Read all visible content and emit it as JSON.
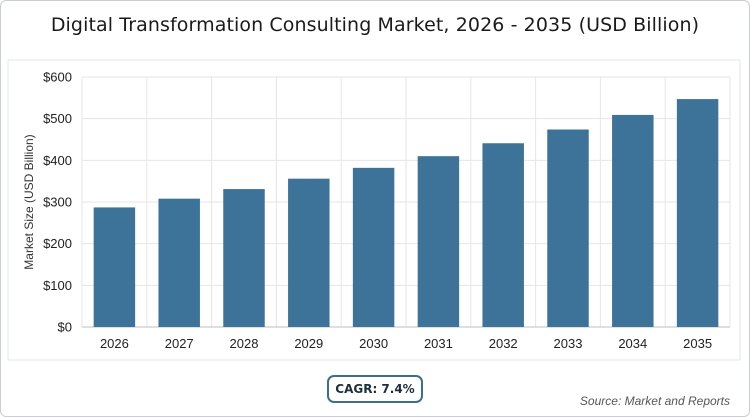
{
  "title": "Digital Transformation Consulting Market, 2026 - 2035 (USD Billion)",
  "cagr_badge": "CAGR: 7.4%",
  "source": "Source: Market and Reports",
  "colors": {
    "bar": "#3d7399",
    "grid": "#e6e6e6",
    "axis": "#bfbfbf"
  },
  "chart_data": {
    "type": "bar",
    "title": "Digital Transformation Consulting Market, 2026 - 2035 (USD Billion)",
    "xlabel": "",
    "ylabel": "Market Size (USD Billion)",
    "categories": [
      "2026",
      "2027",
      "2028",
      "2029",
      "2030",
      "2031",
      "2032",
      "2033",
      "2034",
      "2035"
    ],
    "values": [
      287,
      308,
      331,
      356,
      382,
      410,
      441,
      474,
      509,
      547
    ],
    "ylim": [
      0,
      600
    ],
    "yticks": [
      0,
      100,
      200,
      300,
      400,
      500,
      600
    ],
    "ytick_labels": [
      "$0",
      "$100",
      "$200",
      "$300",
      "$400",
      "$500",
      "$600"
    ],
    "grid": true,
    "legend": "none"
  }
}
